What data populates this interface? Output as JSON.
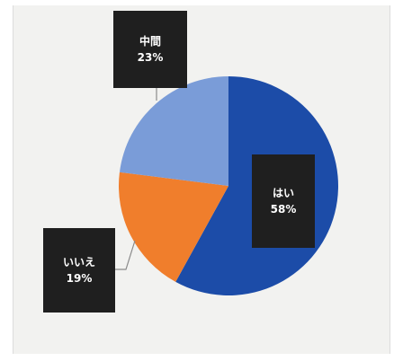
{
  "chart_data": {
    "type": "pie",
    "title": "",
    "slices": [
      {
        "label": "はい",
        "value": 58,
        "value_label": "58%",
        "color": "#1c4ca8"
      },
      {
        "label": "いいえ",
        "value": 19,
        "value_label": "19%",
        "color": "#f07e2c"
      },
      {
        "label": "中間",
        "value": 23,
        "value_label": "23%",
        "color": "#7a9cd8"
      }
    ],
    "start": "12 o'clock",
    "direction": "clockwise",
    "legend": "none",
    "label_style": "dark callout boxes with leader lines"
  }
}
